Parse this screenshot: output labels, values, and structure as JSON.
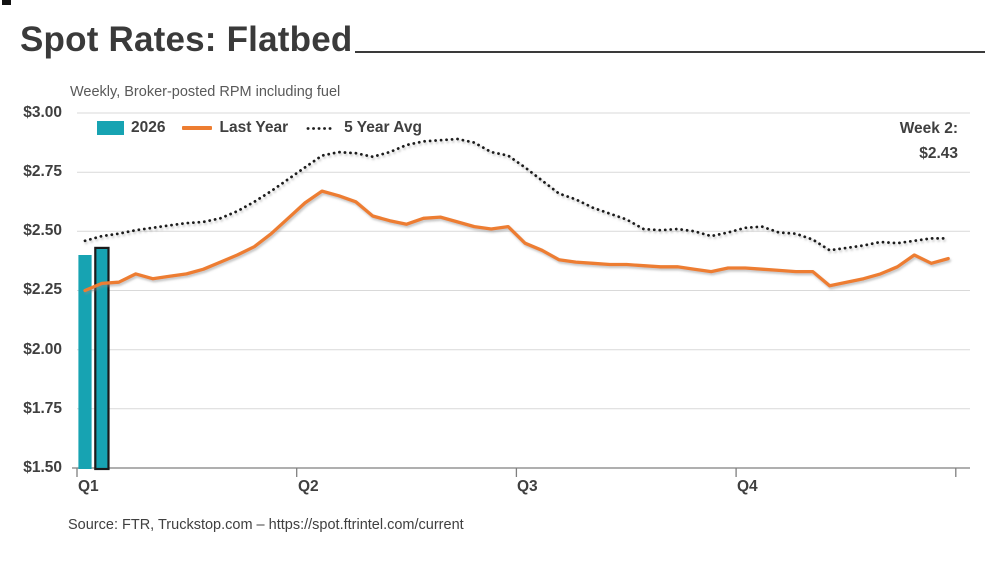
{
  "header": {
    "title": "Spot Rates: Flatbed"
  },
  "subtitle": "Weekly, Broker-posted RPM including fuel",
  "source": "Source: FTR, Truckstop.com – https://spot.ftrintel.com/current",
  "colors": {
    "teal": "#17A3B2",
    "orange": "#ED7D31",
    "dotted_line": "#1F1F1F",
    "grid": "#D9D9D9",
    "axis": "#7F7F7F",
    "title_text": "#3A3A3A",
    "label_text": "#3F3F3F",
    "subtitle_text": "#595959",
    "bar_highlight_border": "#1A1A1A"
  },
  "chart_data": {
    "type": "combo",
    "title": "Spot Rates: Flatbed",
    "subtitle": "Weekly, Broker-posted RPM including fuel",
    "x_unit": "week of year",
    "x_range": [
      1,
      52
    ],
    "x_axis": {
      "tick_labels": [
        "Q1",
        "Q2",
        "Q3",
        "Q4"
      ]
    },
    "y_axis": {
      "min": 1.5,
      "max": 3.0,
      "ticks": [
        3.0,
        2.75,
        2.5,
        2.25,
        2.0,
        1.75,
        1.5
      ],
      "tick_labels": [
        "$3.00",
        "$2.75",
        "$2.50",
        "$2.25",
        "$2.00",
        "$1.75",
        "$1.50"
      ],
      "grid": true
    },
    "legend": [
      {
        "label": "2026",
        "type": "bar",
        "color": "#17A3B2"
      },
      {
        "label": "Last Year",
        "type": "line",
        "color": "#ED7D31"
      },
      {
        "label": "5 Year Avg",
        "type": "dotted-line",
        "color": "#1F1F1F"
      }
    ],
    "annotation": {
      "label": "Week 2:",
      "value": "$2.43"
    },
    "series": [
      {
        "name": "2026",
        "type": "bar",
        "color": "#17A3B2",
        "weeks": [
          1,
          2
        ],
        "values": [
          2.4,
          2.43
        ],
        "highlighted_week": 2
      },
      {
        "name": "Last Year",
        "type": "line",
        "color": "#ED7D31",
        "weeks": "1-52",
        "values": [
          2.25,
          2.28,
          2.285,
          2.32,
          2.3,
          2.31,
          2.32,
          2.34,
          2.37,
          2.4,
          2.435,
          2.49,
          2.555,
          2.62,
          2.67,
          2.65,
          2.625,
          2.565,
          2.545,
          2.53,
          2.555,
          2.56,
          2.54,
          2.52,
          2.51,
          2.52,
          2.45,
          2.42,
          2.38,
          2.37,
          2.365,
          2.36,
          2.36,
          2.355,
          2.35,
          2.35,
          2.34,
          2.33,
          2.345,
          2.345,
          2.34,
          2.335,
          2.33,
          2.33,
          2.27,
          2.285,
          2.3,
          2.32,
          2.35,
          2.4,
          2.365,
          2.385
        ]
      },
      {
        "name": "5 Year Avg",
        "type": "dotted-line",
        "color": "#1F1F1F",
        "weeks": "1-52",
        "values": [
          2.46,
          2.48,
          2.49,
          2.505,
          2.515,
          2.525,
          2.535,
          2.54,
          2.555,
          2.585,
          2.625,
          2.67,
          2.72,
          2.77,
          2.82,
          2.835,
          2.83,
          2.815,
          2.835,
          2.865,
          2.88,
          2.885,
          2.89,
          2.875,
          2.835,
          2.82,
          2.77,
          2.715,
          2.66,
          2.635,
          2.6,
          2.575,
          2.55,
          2.51,
          2.505,
          2.51,
          2.5,
          2.48,
          2.495,
          2.515,
          2.52,
          2.495,
          2.49,
          2.465,
          2.42,
          2.43,
          2.44,
          2.455,
          2.45,
          2.46,
          2.47,
          2.47
        ]
      }
    ]
  }
}
